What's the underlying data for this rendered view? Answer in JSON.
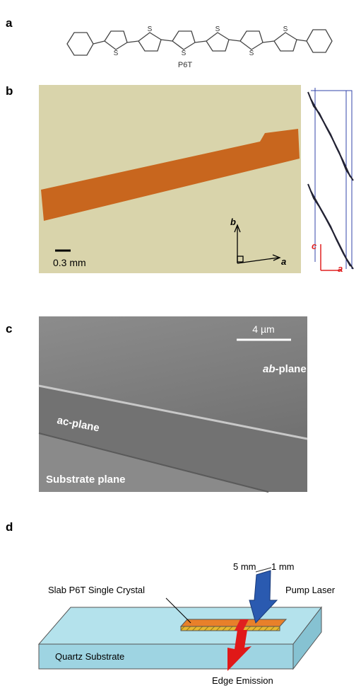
{
  "panels": {
    "a": {
      "label": "a",
      "molecule": {
        "name": "P6T",
        "atoms": [
          "S",
          "S",
          "S",
          "S",
          "S",
          "S"
        ]
      }
    },
    "b": {
      "label": "b",
      "axis_b": "b",
      "axis_a": "a",
      "scale": "0.3 mm",
      "cell_c": "c",
      "cell_a": "a"
    },
    "c": {
      "label": "c",
      "scale": "4 µm",
      "ab_plane": {
        "italic": "ab",
        "rest": "-plane"
      },
      "ac_plane": "ac-plane",
      "substrate": "Substrate plane"
    },
    "d": {
      "label": "d",
      "width": "5 mm",
      "thickness": "1 mm",
      "crystal": "Slab P6T Single Crystal",
      "pump": "Pump Laser",
      "substrate": "Quartz Substrate",
      "emission": "Edge Emission"
    }
  }
}
